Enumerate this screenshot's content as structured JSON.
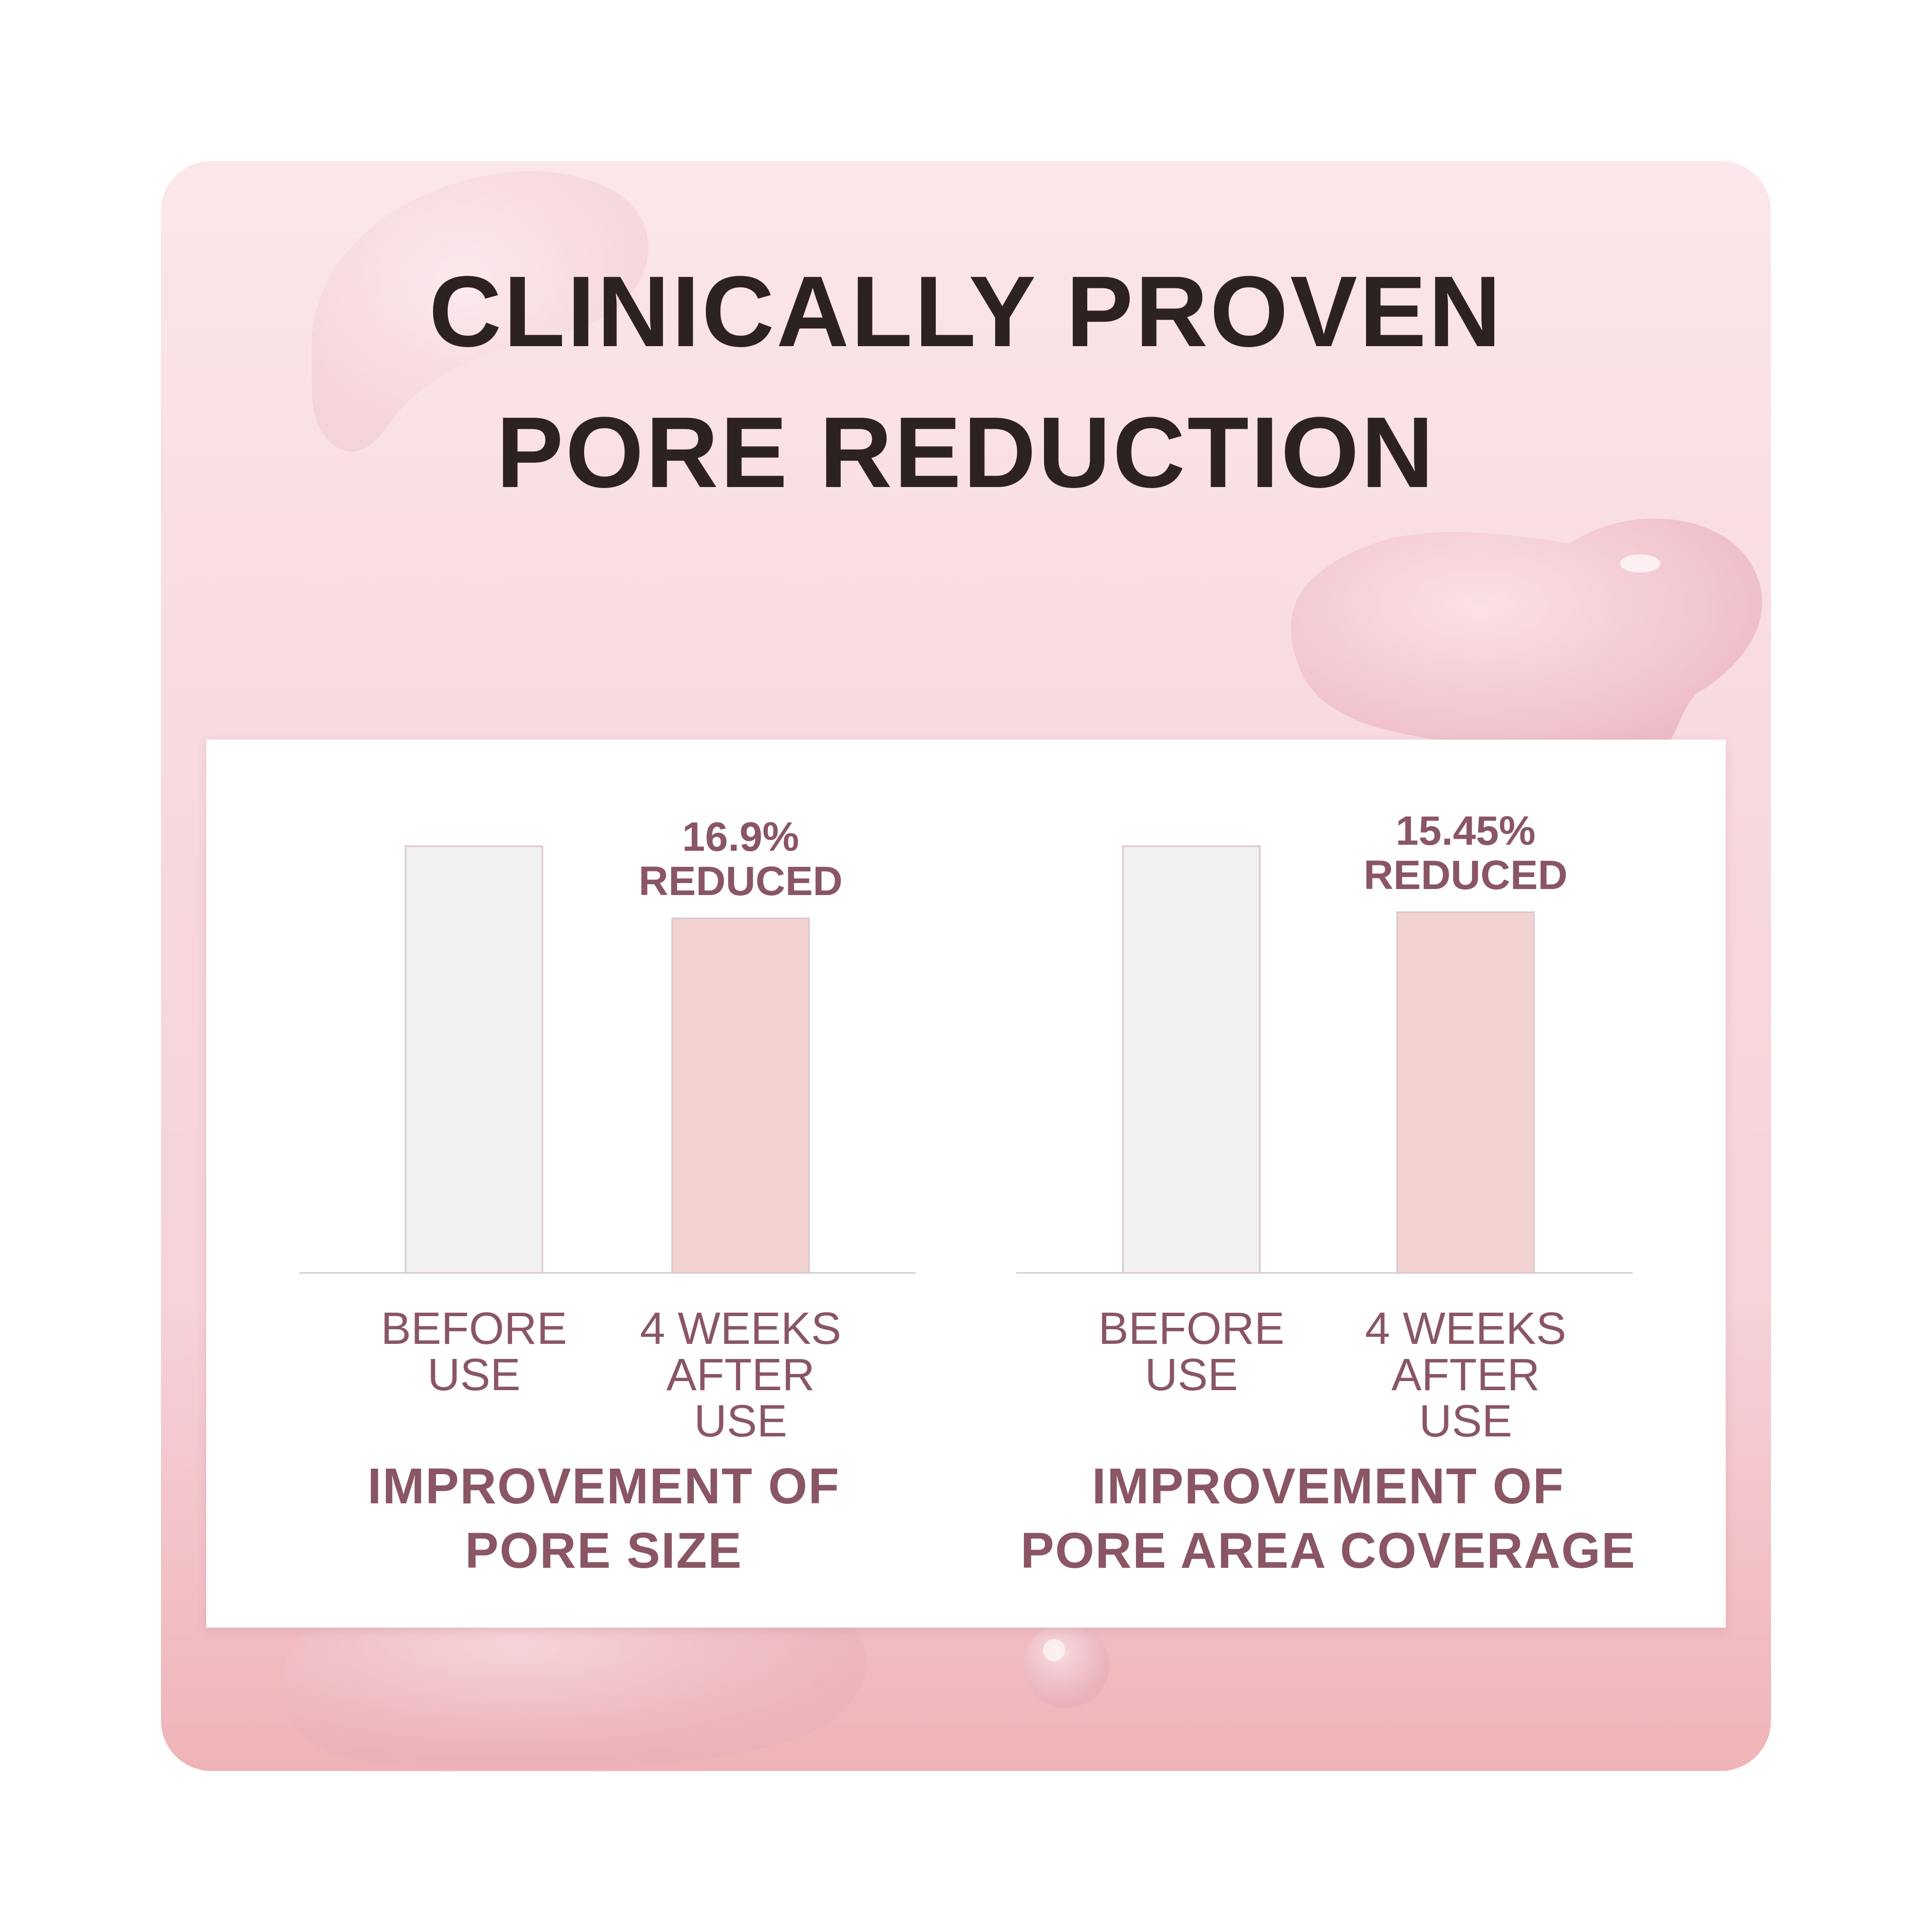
{
  "colors": {
    "title": "#2d2222",
    "accent": "#8a5663",
    "before_bar": "#f1f1f1",
    "after_bar": "#f2d3d2",
    "bar_outline": "#d9c7c9",
    "axis": "#cfcfcf"
  },
  "title_lines": [
    "CLINICALLY PROVEN",
    "PORE REDUCTION"
  ],
  "chart_data": [
    {
      "type": "bar",
      "categories": [
        "BEFORE USE",
        "4 WEEKS AFTER USE"
      ],
      "category_lines": [
        [
          "BEFORE",
          "USE"
        ],
        [
          "4 WEEKS",
          "AFTER USE"
        ]
      ],
      "values": [
        100,
        83.1
      ],
      "value_unit": "relative %",
      "annotation": [
        "16.9%",
        "REDUCED"
      ],
      "title_lines": [
        "IMPROVEMENT OF",
        "PORE SIZE"
      ],
      "ylim": [
        0,
        100
      ],
      "grid": false,
      "axis_labels_shown": false
    },
    {
      "type": "bar",
      "categories": [
        "BEFORE USE",
        "4 WEEKS AFTER USE"
      ],
      "category_lines": [
        [
          "BEFORE",
          "USE"
        ],
        [
          "4 WEEKS",
          "AFTER USE"
        ]
      ],
      "values": [
        100,
        84.55
      ],
      "value_unit": "relative %",
      "annotation": [
        "15.45%",
        "REDUCED"
      ],
      "title_lines": [
        "IMPROVEMENT OF",
        "PORE AREA COVERAGE"
      ],
      "ylim": [
        0,
        100
      ],
      "grid": false,
      "axis_labels_shown": false
    }
  ]
}
